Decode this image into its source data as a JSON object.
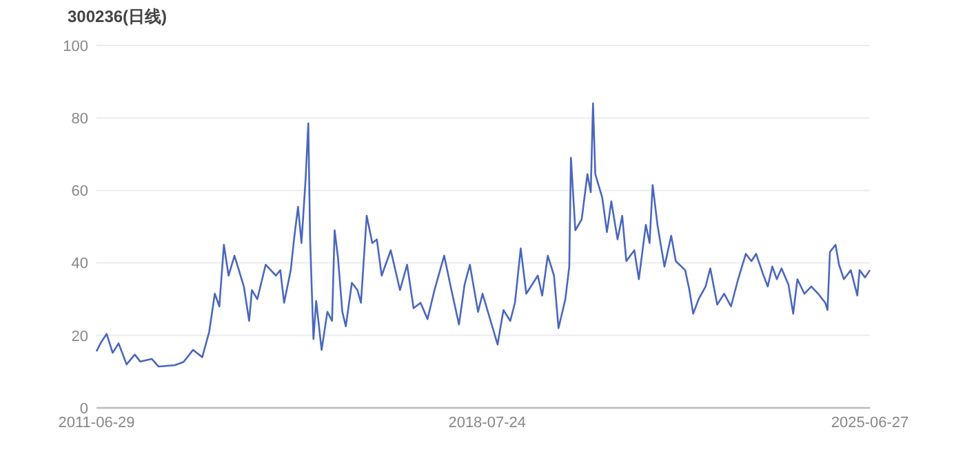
{
  "chart_data": {
    "type": "line",
    "title": "300236(日线)",
    "x": [
      "2011-06-29",
      "2011-07-28",
      "2011-09-04",
      "2011-10-14",
      "2011-11-22",
      "2012-01-14",
      "2012-03-08",
      "2012-04-13",
      "2012-06-28",
      "2012-08-13",
      "2012-11-28",
      "2013-01-25",
      "2013-03-28",
      "2013-05-28",
      "2013-07-13",
      "2013-08-19",
      "2013-09-18",
      "2013-10-18",
      "2013-11-18",
      "2013-12-27",
      "2014-02-27",
      "2014-04-03",
      "2014-04-21",
      "2014-05-27",
      "2014-07-21",
      "2014-09-27",
      "2014-10-26",
      "2014-11-20",
      "2015-01-03",
      "2015-01-26",
      "2015-02-20",
      "2015-03-15",
      "2015-04-11",
      "2015-04-29",
      "2015-05-11",
      "2015-06-02",
      "2015-06-20",
      "2015-07-26",
      "2015-09-02",
      "2015-10-03",
      "2015-10-20",
      "2015-11-11",
      "2015-12-10",
      "2016-01-02",
      "2016-02-11",
      "2016-03-19",
      "2016-04-11",
      "2016-05-19",
      "2016-06-25",
      "2016-07-25",
      "2016-08-26",
      "2016-10-25",
      "2016-12-25",
      "2017-02-10",
      "2017-03-25",
      "2017-05-10",
      "2017-06-25",
      "2017-08-10",
      "2017-10-13",
      "2017-11-25",
      "2018-01-19",
      "2018-02-25",
      "2018-04-01",
      "2018-05-25",
      "2018-06-24",
      "2018-08-09",
      "2018-10-01",
      "2018-11-09",
      "2018-12-24",
      "2019-01-24",
      "2019-03-03",
      "2019-04-09",
      "2019-06-24",
      "2019-07-23",
      "2019-08-29",
      "2019-10-09",
      "2019-11-08",
      "2019-12-23",
      "2020-01-18",
      "2020-01-29",
      "2020-02-27",
      "2020-04-09",
      "2020-05-17",
      "2020-06-08",
      "2020-06-23",
      "2020-07-08",
      "2020-08-23",
      "2020-09-23",
      "2020-10-22",
      "2020-12-02",
      "2021-01-02",
      "2021-01-29",
      "2021-03-23",
      "2021-04-22",
      "2021-06-07",
      "2021-07-02",
      "2021-07-22",
      "2021-08-23",
      "2021-10-08",
      "2021-11-22",
      "2021-12-22",
      "2022-02-22",
      "2022-03-22",
      "2022-04-16",
      "2022-05-22",
      "2022-07-07",
      "2022-08-07",
      "2022-09-22",
      "2022-11-07",
      "2022-12-22",
      "2023-02-07",
      "2023-03-30",
      "2023-05-06",
      "2023-06-06",
      "2023-07-21",
      "2023-08-22",
      "2023-09-21",
      "2023-10-21",
      "2023-11-21",
      "2024-01-06",
      "2024-02-06",
      "2024-03-05",
      "2024-04-20",
      "2024-06-05",
      "2024-07-20",
      "2024-09-05",
      "2024-09-20",
      "2024-10-06",
      "2024-11-12",
      "2024-12-05",
      "2025-01-06",
      "2025-02-21",
      "2025-04-05",
      "2025-04-20",
      "2025-05-26",
      "2025-06-27"
    ],
    "series": [
      {
        "color": "#4a67bd",
        "values": [
          15.6,
          18,
          20.4,
          15.2,
          17.8,
          12,
          14.7,
          12.8,
          13.5,
          11.4,
          11.8,
          12.7,
          16,
          14,
          21,
          31.5,
          28,
          45,
          36.5,
          42,
          33.5,
          24,
          32.5,
          30,
          39.5,
          36.5,
          38,
          29,
          38,
          47,
          55.5,
          45.5,
          63,
          78.5,
          46.5,
          19,
          29.5,
          16,
          26.5,
          24,
          49,
          41.5,
          26.5,
          22.5,
          34.5,
          32.5,
          29,
          53,
          45.5,
          46.5,
          36.5,
          43.5,
          32.5,
          39.5,
          27.5,
          29,
          24.5,
          32.5,
          42,
          33.5,
          23,
          34,
          39.5,
          26.5,
          31.5,
          25,
          17.5,
          27,
          24,
          29,
          44,
          31.5,
          36.5,
          31,
          42,
          36.5,
          22,
          30,
          39,
          69,
          49,
          52,
          64.5,
          59.5,
          84,
          64.5,
          58,
          48.5,
          57,
          46.5,
          53,
          40.5,
          43.5,
          35.5,
          50.5,
          45.5,
          61.5,
          50.5,
          39,
          47.5,
          40.5,
          38,
          32.5,
          26,
          30,
          33.5,
          38.5,
          28.5,
          31.5,
          28,
          35.5,
          42.5,
          40.5,
          42.5,
          37,
          33.5,
          39,
          35.5,
          38.5,
          34,
          26,
          35.5,
          31.5,
          33.5,
          31.5,
          29,
          27,
          43,
          45,
          39.5,
          35.5,
          38,
          31,
          38,
          36,
          38
        ]
      }
    ],
    "ylim": [
      0,
      100
    ],
    "yticks": [
      0,
      20,
      40,
      60,
      80,
      100
    ],
    "xticks": [
      "2011-06-29",
      "2018-07-24",
      "2025-06-27"
    ],
    "xlim": [
      "2011-06-29",
      "2025-06-27"
    ],
    "grid": "y",
    "marker": "none",
    "line_style": "solid"
  }
}
